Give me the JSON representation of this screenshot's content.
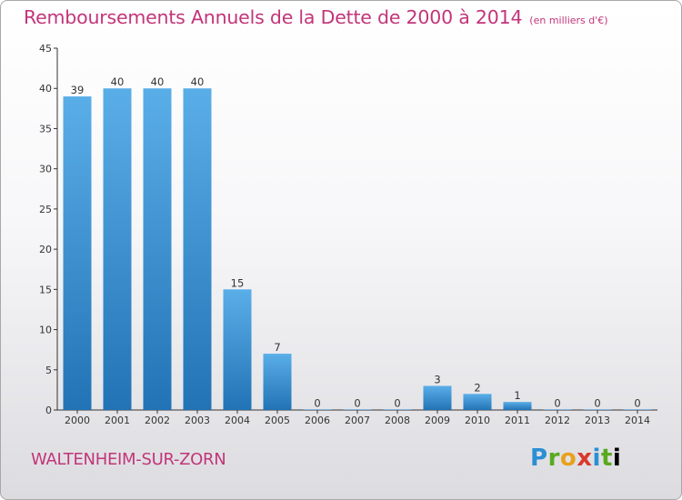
{
  "header": {
    "title": "Remboursements Annuels de la Dette de 2000 à 2014",
    "unit": "(en milliers d'€)"
  },
  "footer": {
    "commune": "WALTENHEIM-SUR-ZORN",
    "logo_letters": [
      "P",
      "r",
      "o",
      "x",
      "i",
      "t",
      "i"
    ]
  },
  "colors": {
    "title": "#c2357a",
    "bar_top": "#5aaee8",
    "bar_bottom": "#2273b5",
    "axis": "#333333"
  },
  "chart_data": {
    "type": "bar",
    "title": "Remboursements Annuels de la Dette de 2000 à 2014",
    "subtitle": "(en milliers d'€)",
    "xlabel": "",
    "ylabel": "",
    "categories": [
      "2000",
      "2001",
      "2002",
      "2003",
      "2004",
      "2005",
      "2006",
      "2007",
      "2008",
      "2009",
      "2010",
      "2011",
      "2012",
      "2013",
      "2014"
    ],
    "values": [
      39,
      40,
      40,
      40,
      15,
      7,
      0,
      0,
      0,
      3,
      2,
      1,
      0,
      0,
      0
    ],
    "ylim": [
      0,
      45
    ],
    "yticks": [
      0,
      5,
      10,
      15,
      20,
      25,
      30,
      35,
      40,
      45
    ],
    "grid": false,
    "legend": "none"
  }
}
